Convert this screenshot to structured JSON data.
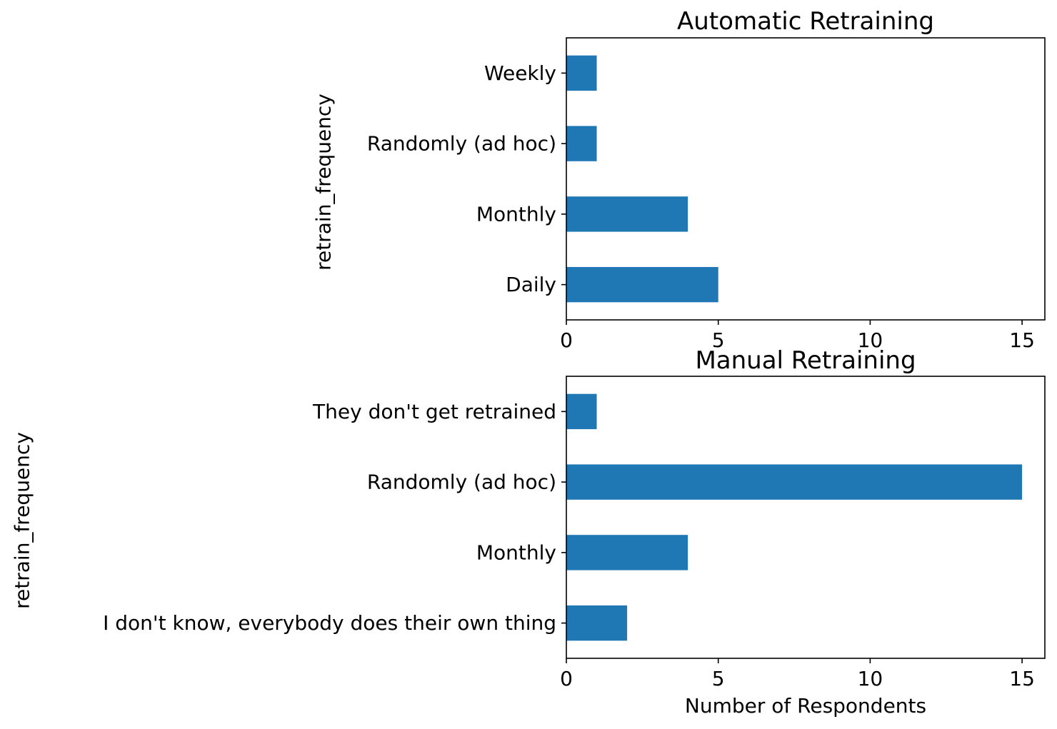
{
  "chart_data": [
    {
      "type": "bar",
      "orientation": "horizontal",
      "title": "Automatic Retraining",
      "xlabel": "",
      "ylabel": "retrain_frequency",
      "categories": [
        "Daily",
        "Monthly",
        "Randomly (ad hoc)",
        "Weekly"
      ],
      "values": [
        5,
        4,
        1,
        1
      ],
      "xlim": [
        0,
        15.75
      ],
      "xticks": [
        0,
        5,
        10,
        15
      ],
      "bar_color": "#1f77b4",
      "grid": false,
      "legend": "none"
    },
    {
      "type": "bar",
      "orientation": "horizontal",
      "title": "Manual Retraining",
      "xlabel": "Number of Respondents",
      "ylabel": "retrain_frequency",
      "categories": [
        "I don't know, everybody does their own thing",
        "Monthly",
        "Randomly (ad hoc)",
        "They don't get retrained"
      ],
      "values": [
        2,
        4,
        15,
        1
      ],
      "xlim": [
        0,
        15.75
      ],
      "xticks": [
        0,
        5,
        10,
        15
      ],
      "bar_color": "#1f77b4",
      "grid": false,
      "legend": "none"
    }
  ]
}
